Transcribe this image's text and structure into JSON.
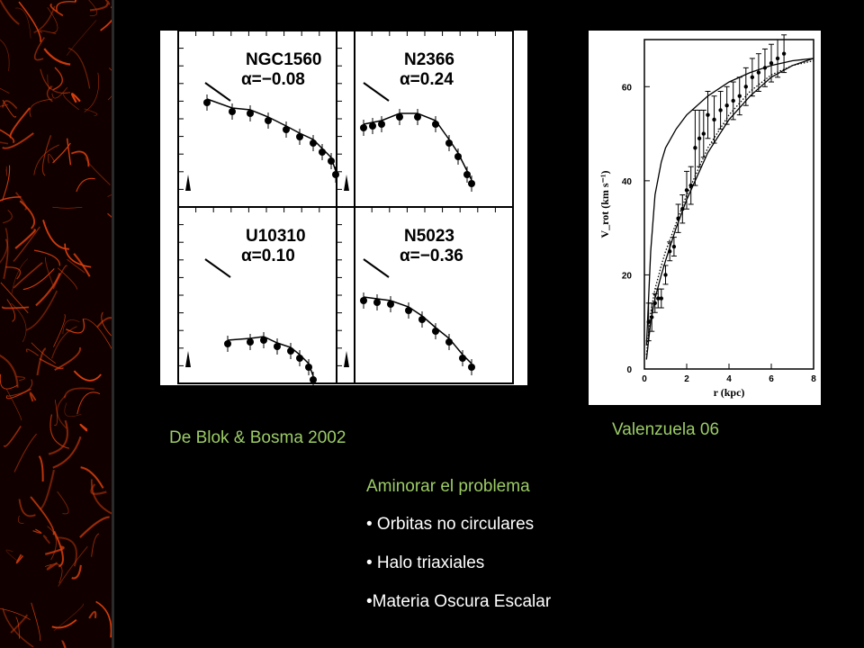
{
  "left_figure": {
    "caption": "De Blok & Bosma 2002",
    "panels": [
      {
        "galaxy": "NGC1560",
        "alpha": "α=−0.08"
      },
      {
        "galaxy": "N2366",
        "alpha": "α=0.24"
      },
      {
        "galaxy": "U10310",
        "alpha": "α=0.10"
      },
      {
        "galaxy": "N5023",
        "alpha": "α=−0.36"
      }
    ]
  },
  "right_figure": {
    "caption": "Valenzuela 06",
    "chart_data": {
      "type": "line",
      "xlabel": "r (kpc)",
      "ylabel": "V_rot (km s⁻¹)",
      "xlim": [
        0,
        8
      ],
      "ylim": [
        0,
        70
      ],
      "x_ticks": [
        "0",
        "2",
        "4",
        "6",
        "8"
      ],
      "y_ticks": [
        "0",
        "20",
        "40",
        "60"
      ],
      "series": [
        {
          "style": "solid-upper",
          "x": [
            0.1,
            0.3,
            0.5,
            0.8,
            1,
            1.5,
            2,
            3,
            4,
            5,
            6,
            7,
            8
          ],
          "y": [
            5,
            25,
            37,
            44,
            47,
            51,
            54,
            58,
            61,
            63,
            64.5,
            65.5,
            66
          ]
        },
        {
          "style": "solid-lower",
          "x": [
            0.1,
            0.3,
            0.5,
            0.8,
            1,
            1.5,
            2,
            3,
            4,
            5,
            6,
            7,
            8
          ],
          "y": [
            2,
            10,
            15,
            20,
            23,
            30,
            36,
            46,
            53,
            58,
            62,
            64.5,
            66
          ]
        },
        {
          "style": "dotted",
          "x": [
            0.1,
            0.3,
            0.5,
            0.8,
            1,
            1.5,
            2,
            3,
            4,
            5,
            6,
            7,
            8
          ],
          "y": [
            3,
            12,
            17,
            22,
            25,
            31,
            37,
            47,
            54,
            59,
            62.5,
            64.5,
            65.5
          ]
        }
      ],
      "points": {
        "x": [
          0.2,
          0.35,
          0.5,
          0.65,
          0.8,
          1.0,
          1.2,
          1.4,
          1.6,
          1.8,
          2.0,
          2.2,
          2.4,
          2.6,
          2.8,
          3.0,
          3.3,
          3.6,
          3.9,
          4.2,
          4.5,
          4.8,
          5.1,
          5.4,
          5.7,
          6.0,
          6.3,
          6.6
        ],
        "y": [
          10,
          11,
          14,
          15,
          15,
          20,
          25,
          26,
          32,
          34,
          38,
          39,
          47,
          49,
          50,
          54,
          53,
          55,
          56,
          57,
          58,
          60,
          62,
          63,
          64,
          65,
          66,
          67
        ],
        "err": [
          4,
          3,
          2,
          2,
          2,
          2,
          2,
          2,
          3,
          3,
          4,
          4,
          8,
          6,
          5,
          5,
          5,
          4,
          4,
          4,
          4,
          4,
          4,
          4,
          4,
          4,
          4,
          4
        ]
      }
    }
  },
  "notes": {
    "heading": "Aminorar el problema",
    "items": [
      "• Orbitas no circulares",
      "• Halo triaxiales",
      "•Materia Oscura Escalar"
    ]
  },
  "colors": {
    "caption": "#9ccc65",
    "text": "#ffffff",
    "background": "#000000"
  }
}
